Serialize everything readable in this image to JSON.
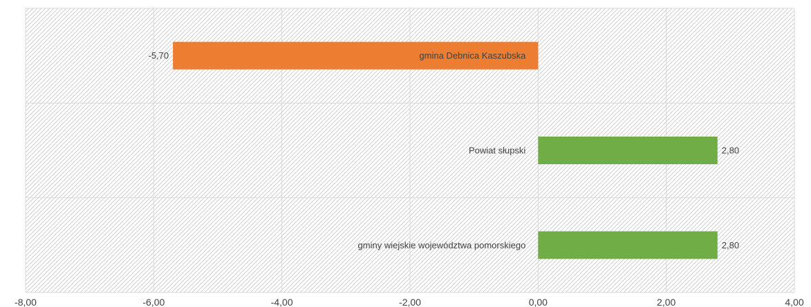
{
  "chart_data": {
    "type": "bar",
    "orientation": "horizontal",
    "categories": [
      "gmina Debnica Kaszubska",
      "Powiat słupski",
      "gminy wiejskie województwa pomorskiego"
    ],
    "values": [
      -5.7,
      2.8,
      2.8
    ],
    "data_labels": [
      "-5,70",
      "2,80",
      "2,80"
    ],
    "colors": [
      "#ED7D31",
      "#70AD47",
      "#70AD47"
    ],
    "xlim": [
      -8,
      4
    ],
    "xticks": [
      -8,
      -6,
      -4,
      -2,
      0,
      2,
      4
    ],
    "xtick_labels": [
      "-8,00",
      "-6,00",
      "-4,00",
      "-2,00",
      "0,00",
      "2,00",
      "4,00"
    ],
    "grid": true,
    "background": "diagonal-hatch",
    "title": "",
    "xlabel": "",
    "ylabel": ""
  }
}
